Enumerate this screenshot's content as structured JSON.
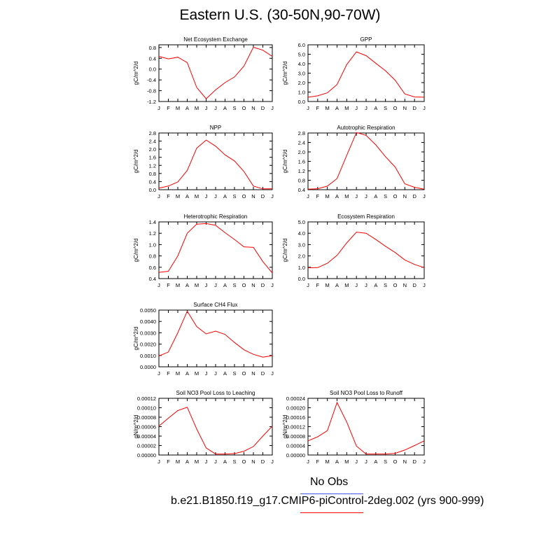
{
  "figure": {
    "title": "Eastern U.S. (30-50N,90-70W)",
    "legend": [
      {
        "label": "No Obs",
        "color": "#4a5ae8"
      },
      {
        "label": "b.e21.B1850.f19_g17.CMIP6-piControl-2deg.002 (yrs 900-999)",
        "color": "#ff0000"
      }
    ],
    "series_color": "#ff0000"
  },
  "chart_data": [
    {
      "type": "line",
      "title": "Net Ecosystem Exchange",
      "ylabel": "gC/m^2/d",
      "x": [
        "J",
        "F",
        "M",
        "A",
        "M",
        "J",
        "J",
        "A",
        "S",
        "O",
        "N",
        "D",
        "J"
      ],
      "ylim": [
        -1.2,
        0.9
      ],
      "yticks": [
        "0.8",
        "0.4",
        "0.0",
        "-0.4",
        "-0.8",
        "-1.2"
      ],
      "ytick_values": [
        0.8,
        0.4,
        0.0,
        -0.4,
        -0.8,
        -1.2
      ],
      "values": [
        0.47,
        0.38,
        0.44,
        0.24,
        -0.68,
        -1.1,
        -0.77,
        -0.5,
        -0.29,
        0.11,
        0.81,
        0.7,
        0.47
      ]
    },
    {
      "type": "line",
      "title": "GPP",
      "ylabel": "gC/m^2/d",
      "x": [
        "J",
        "F",
        "M",
        "A",
        "M",
        "J",
        "J",
        "A",
        "S",
        "O",
        "N",
        "D",
        "J"
      ],
      "ylim": [
        0.0,
        6.0
      ],
      "yticks": [
        "6.0",
        "5.0",
        "4.0",
        "3.0",
        "2.0",
        "1.0",
        "0.0"
      ],
      "ytick_values": [
        6.0,
        5.0,
        4.0,
        3.0,
        2.0,
        1.0,
        0.0
      ],
      "values": [
        0.45,
        0.6,
        0.92,
        1.8,
        3.9,
        5.25,
        4.85,
        4.05,
        3.25,
        2.25,
        0.8,
        0.48,
        0.45
      ]
    },
    {
      "type": "line",
      "title": "NPP",
      "ylabel": "gC/m^2/d",
      "x": [
        "J",
        "F",
        "M",
        "A",
        "M",
        "J",
        "J",
        "A",
        "S",
        "O",
        "N",
        "D",
        "J"
      ],
      "ylim": [
        0.0,
        2.8
      ],
      "yticks": [
        "2.8",
        "2.4",
        "2.0",
        "1.6",
        "1.2",
        "0.8",
        "0.4",
        "0.0"
      ],
      "ytick_values": [
        2.8,
        2.4,
        2.0,
        1.6,
        1.2,
        0.8,
        0.4,
        0.0
      ],
      "values": [
        0.08,
        0.18,
        0.38,
        0.95,
        2.05,
        2.45,
        2.15,
        1.72,
        1.42,
        0.9,
        0.18,
        0.04,
        0.05
      ]
    },
    {
      "type": "line",
      "title": "Autotrophic Respiration",
      "ylabel": "gC/m^2/d",
      "x": [
        "J",
        "F",
        "M",
        "A",
        "M",
        "J",
        "J",
        "A",
        "S",
        "O",
        "N",
        "D",
        "J"
      ],
      "ylim": [
        0.4,
        2.8
      ],
      "yticks": [
        "2.8",
        "2.4",
        "2.0",
        "1.6",
        "1.2",
        "0.8",
        "0.4"
      ],
      "ytick_values": [
        2.8,
        2.4,
        2.0,
        1.6,
        1.2,
        0.8,
        0.4
      ],
      "values": [
        0.42,
        0.44,
        0.55,
        0.87,
        1.85,
        2.82,
        2.7,
        2.3,
        1.8,
        1.36,
        0.65,
        0.5,
        0.42
      ]
    },
    {
      "type": "line",
      "title": "Heterotrophic Respiration",
      "ylabel": "gC/m^2/d",
      "x": [
        "J",
        "F",
        "M",
        "A",
        "M",
        "J",
        "J",
        "A",
        "S",
        "O",
        "N",
        "D",
        "J"
      ],
      "ylim": [
        0.4,
        1.4
      ],
      "yticks": [
        "1.4",
        "1.2",
        "1.0",
        "0.8",
        "0.6",
        "0.4"
      ],
      "ytick_values": [
        1.4,
        1.2,
        1.0,
        0.8,
        0.6,
        0.4
      ],
      "values": [
        0.51,
        0.53,
        0.8,
        1.2,
        1.36,
        1.37,
        1.34,
        1.21,
        1.09,
        0.96,
        0.95,
        0.7,
        0.5
      ]
    },
    {
      "type": "line",
      "title": "Ecosystem Respiration",
      "ylabel": "gC/m^2/d",
      "x": [
        "J",
        "F",
        "M",
        "A",
        "M",
        "J",
        "J",
        "A",
        "S",
        "O",
        "N",
        "D",
        "J"
      ],
      "ylim": [
        0.0,
        5.0
      ],
      "yticks": [
        "5.0",
        "4.0",
        "3.0",
        "2.0",
        "1.0",
        "0.0"
      ],
      "ytick_values": [
        5.0,
        4.0,
        3.0,
        2.0,
        1.0,
        0.0
      ],
      "values": [
        0.95,
        0.97,
        1.35,
        2.05,
        3.15,
        4.1,
        4.0,
        3.45,
        2.85,
        2.3,
        1.65,
        1.25,
        0.97
      ]
    },
    {
      "type": "line",
      "title": "Surface CH4 Flux",
      "ylabel": "gC/m^2/d",
      "x": [
        "J",
        "F",
        "M",
        "A",
        "M",
        "J",
        "J",
        "A",
        "S",
        "O",
        "N",
        "D",
        "J"
      ],
      "ylim": [
        0.0,
        0.005
      ],
      "yticks": [
        "0.0050",
        "0.0040",
        "0.0030",
        "0.0020",
        "0.0010",
        "0.0000"
      ],
      "ytick_values": [
        0.005,
        0.004,
        0.003,
        0.002,
        0.001,
        0.0
      ],
      "values": [
        0.00095,
        0.0013,
        0.003,
        0.0049,
        0.00355,
        0.0029,
        0.00315,
        0.00285,
        0.00215,
        0.0015,
        0.0011,
        0.00085,
        0.00098
      ]
    },
    {
      "type": "line",
      "title": "Soil NO3 Pool Loss to Leaching",
      "ylabel": "gN/m^2/d",
      "x": [
        "J",
        "F",
        "M",
        "A",
        "M",
        "J",
        "J",
        "A",
        "S",
        "O",
        "N",
        "D",
        "J"
      ],
      "ylim": [
        0.0,
        0.00012
      ],
      "yticks": [
        "0.00012",
        "0.00010",
        "0.00008",
        "0.00006",
        "0.00004",
        "0.00002",
        "0.00000"
      ],
      "ytick_values": [
        0.00012,
        0.0001,
        8e-05,
        6e-05,
        4e-05,
        2e-05,
        0.0
      ],
      "values": [
        6.1e-05,
        7.8e-05,
        9.4e-05,
        0.000101,
        5.5e-05,
        1.5e-05,
        2e-06,
        2e-06,
        3e-06,
        8e-06,
        1.8e-05,
        4e-05,
        6.1e-05
      ]
    },
    {
      "type": "line",
      "title": "Soil NO3 Pool Loss to Runoff",
      "ylabel": "gN/m^2/d",
      "x": [
        "J",
        "F",
        "M",
        "A",
        "M",
        "J",
        "J",
        "A",
        "S",
        "O",
        "N",
        "D",
        "J"
      ],
      "ylim": [
        0.0,
        0.00024
      ],
      "yticks": [
        "0.00024",
        "0.00020",
        "0.00016",
        "0.00012",
        "0.00008",
        "0.00004",
        "0.00000"
      ],
      "ytick_values": [
        0.00024,
        0.0002,
        0.00016,
        0.00012,
        8e-05,
        4e-05,
        0.0
      ],
      "values": [
        6e-05,
        7.7e-05,
        0.000103,
        0.000222,
        0.00014,
        3.8e-05,
        4e-06,
        4e-06,
        4e-06,
        7e-06,
        2.1e-05,
        4e-05,
        6e-05
      ]
    }
  ]
}
